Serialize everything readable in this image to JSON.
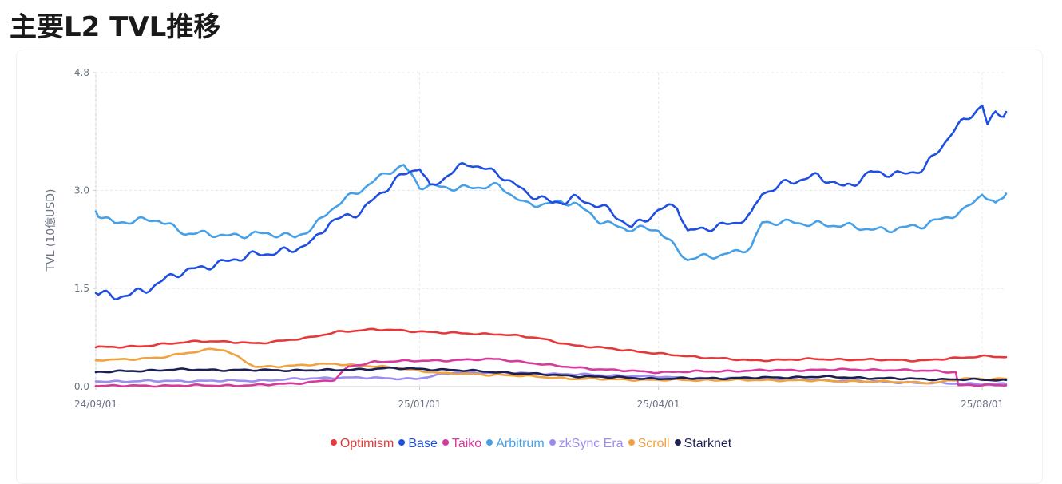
{
  "page": {
    "title": "主要L2 TVL推移"
  },
  "chart_data": {
    "type": "line",
    "title": "主要L2 TVL推移",
    "xlabel": "",
    "ylabel": "TVL (10億USD)",
    "ylim": [
      0,
      4.8
    ],
    "yticks": [
      "0.0",
      "1.5",
      "3.0",
      "4.8"
    ],
    "xlim": [
      "2024-09-01",
      "2025-08-10"
    ],
    "xticks": [
      {
        "date": "2024-09-01",
        "label": "24/09/01"
      },
      {
        "date": "2025-01-01",
        "label": "25/01/01"
      },
      {
        "date": "2025-04-01",
        "label": "25/04/01"
      },
      {
        "date": "2025-08-01",
        "label": "25/08/01"
      }
    ],
    "grid": true,
    "legend_position": "bottom",
    "series": [
      {
        "name": "Optimism",
        "color": "#e5383b",
        "points": [
          [
            "2024-09-01",
            0.6
          ],
          [
            "2024-09-20",
            0.62
          ],
          [
            "2024-10-10",
            0.7
          ],
          [
            "2024-10-31",
            0.66
          ],
          [
            "2024-11-20",
            0.74
          ],
          [
            "2024-12-01",
            0.84
          ],
          [
            "2024-12-15",
            0.87
          ],
          [
            "2024-12-25",
            0.86
          ],
          [
            "2025-01-10",
            0.82
          ],
          [
            "2025-01-31",
            0.8
          ],
          [
            "2025-02-15",
            0.74
          ],
          [
            "2025-03-01",
            0.62
          ],
          [
            "2025-03-15",
            0.58
          ],
          [
            "2025-04-01",
            0.5
          ],
          [
            "2025-04-20",
            0.44
          ],
          [
            "2025-05-05",
            0.4
          ],
          [
            "2025-05-31",
            0.42
          ],
          [
            "2025-06-20",
            0.41
          ],
          [
            "2025-07-10",
            0.4
          ],
          [
            "2025-07-25",
            0.44
          ],
          [
            "2025-08-01",
            0.47
          ],
          [
            "2025-08-10",
            0.45
          ]
        ]
      },
      {
        "name": "Base",
        "color": "#1f4fe0",
        "points": [
          [
            "2024-09-01",
            1.43
          ],
          [
            "2024-09-08",
            1.35
          ],
          [
            "2024-09-20",
            1.5
          ],
          [
            "2024-10-01",
            1.7
          ],
          [
            "2024-10-15",
            1.88
          ],
          [
            "2024-10-31",
            2.0
          ],
          [
            "2024-11-15",
            2.12
          ],
          [
            "2024-11-22",
            2.2
          ],
          [
            "2024-11-28",
            2.5
          ],
          [
            "2024-12-10",
            2.7
          ],
          [
            "2024-12-25",
            3.2
          ],
          [
            "2025-01-01",
            3.38
          ],
          [
            "2025-01-05",
            3.05
          ],
          [
            "2025-01-12",
            3.25
          ],
          [
            "2025-01-20",
            3.4
          ],
          [
            "2025-02-01",
            3.25
          ],
          [
            "2025-02-10",
            2.95
          ],
          [
            "2025-02-20",
            2.8
          ],
          [
            "2025-02-28",
            2.9
          ],
          [
            "2025-03-10",
            2.75
          ],
          [
            "2025-03-15",
            2.62
          ],
          [
            "2025-03-22",
            2.45
          ],
          [
            "2025-04-01",
            2.7
          ],
          [
            "2025-04-08",
            2.75
          ],
          [
            "2025-04-12",
            2.35
          ],
          [
            "2025-04-20",
            2.45
          ],
          [
            "2025-04-30",
            2.5
          ],
          [
            "2025-05-06",
            2.6
          ],
          [
            "2025-05-10",
            2.95
          ],
          [
            "2025-05-20",
            3.15
          ],
          [
            "2025-05-31",
            3.2
          ],
          [
            "2025-06-10",
            3.05
          ],
          [
            "2025-06-20",
            3.28
          ],
          [
            "2025-07-01",
            3.22
          ],
          [
            "2025-07-10",
            3.35
          ],
          [
            "2025-07-20",
            3.85
          ],
          [
            "2025-08-01",
            4.3
          ],
          [
            "2025-08-03",
            4.0
          ],
          [
            "2025-08-06",
            4.2
          ],
          [
            "2025-08-10",
            4.2
          ]
        ]
      },
      {
        "name": "Taiko",
        "color": "#d63a9a",
        "points": [
          [
            "2024-09-01",
            0.01
          ],
          [
            "2024-10-31",
            0.02
          ],
          [
            "2024-11-15",
            0.05
          ],
          [
            "2024-11-30",
            0.1
          ],
          [
            "2024-12-05",
            0.3
          ],
          [
            "2024-12-15",
            0.38
          ],
          [
            "2025-01-10",
            0.4
          ],
          [
            "2025-01-31",
            0.42
          ],
          [
            "2025-02-20",
            0.32
          ],
          [
            "2025-03-15",
            0.25
          ],
          [
            "2025-04-01",
            0.22
          ],
          [
            "2025-05-15",
            0.25
          ],
          [
            "2025-06-15",
            0.26
          ],
          [
            "2025-07-15",
            0.24
          ],
          [
            "2025-07-22",
            0.22
          ],
          [
            "2025-07-23",
            0.02
          ],
          [
            "2025-08-10",
            0.02
          ]
        ]
      },
      {
        "name": "Arbitrum",
        "color": "#46a0e8",
        "points": [
          [
            "2024-09-01",
            2.68
          ],
          [
            "2024-09-08",
            2.5
          ],
          [
            "2024-09-25",
            2.55
          ],
          [
            "2024-10-05",
            2.35
          ],
          [
            "2024-10-20",
            2.3
          ],
          [
            "2024-10-31",
            2.35
          ],
          [
            "2024-11-15",
            2.28
          ],
          [
            "2024-11-22",
            2.45
          ],
          [
            "2024-11-28",
            2.7
          ],
          [
            "2024-12-10",
            3.0
          ],
          [
            "2024-12-20",
            3.3
          ],
          [
            "2024-12-26",
            3.38
          ],
          [
            "2025-01-01",
            3.05
          ],
          [
            "2025-01-15",
            3.05
          ],
          [
            "2025-01-31",
            3.05
          ],
          [
            "2025-02-10",
            2.8
          ],
          [
            "2025-02-28",
            2.8
          ],
          [
            "2025-03-10",
            2.55
          ],
          [
            "2025-03-20",
            2.4
          ],
          [
            "2025-04-01",
            2.4
          ],
          [
            "2025-04-12",
            1.95
          ],
          [
            "2025-04-25",
            2.0
          ],
          [
            "2025-05-06",
            2.15
          ],
          [
            "2025-05-10",
            2.5
          ],
          [
            "2025-05-31",
            2.5
          ],
          [
            "2025-06-20",
            2.4
          ],
          [
            "2025-07-10",
            2.45
          ],
          [
            "2025-07-25",
            2.7
          ],
          [
            "2025-08-01",
            2.95
          ],
          [
            "2025-08-06",
            2.75
          ],
          [
            "2025-08-10",
            2.95
          ]
        ]
      },
      {
        "name": "zkSync Era",
        "color": "#9b8cf0",
        "points": [
          [
            "2024-09-01",
            0.08
          ],
          [
            "2024-10-31",
            0.09
          ],
          [
            "2024-12-01",
            0.14
          ],
          [
            "2024-12-31",
            0.12
          ],
          [
            "2025-01-15",
            0.22
          ],
          [
            "2025-02-15",
            0.2
          ],
          [
            "2025-03-15",
            0.17
          ],
          [
            "2025-04-15",
            0.13
          ],
          [
            "2025-06-01",
            0.1
          ],
          [
            "2025-07-15",
            0.05
          ],
          [
            "2025-08-10",
            0.04
          ]
        ]
      },
      {
        "name": "Scroll",
        "color": "#f0a23f",
        "points": [
          [
            "2024-09-01",
            0.4
          ],
          [
            "2024-09-25",
            0.44
          ],
          [
            "2024-10-15",
            0.58
          ],
          [
            "2024-10-20",
            0.55
          ],
          [
            "2024-10-31",
            0.3
          ],
          [
            "2024-11-15",
            0.32
          ],
          [
            "2024-11-30",
            0.35
          ],
          [
            "2024-12-10",
            0.32
          ],
          [
            "2024-12-25",
            0.28
          ],
          [
            "2025-01-10",
            0.2
          ],
          [
            "2025-01-31",
            0.18
          ],
          [
            "2025-03-01",
            0.12
          ],
          [
            "2025-04-01",
            0.1
          ],
          [
            "2025-05-15",
            0.1
          ],
          [
            "2025-06-15",
            0.08
          ],
          [
            "2025-07-15",
            0.06
          ],
          [
            "2025-07-25",
            0.12
          ],
          [
            "2025-08-10",
            0.12
          ]
        ]
      },
      {
        "name": "Starknet",
        "color": "#1c1f52",
        "points": [
          [
            "2024-09-01",
            0.22
          ],
          [
            "2024-10-01",
            0.26
          ],
          [
            "2024-10-31",
            0.25
          ],
          [
            "2024-11-30",
            0.25
          ],
          [
            "2024-12-20",
            0.28
          ],
          [
            "2025-01-10",
            0.26
          ],
          [
            "2025-01-31",
            0.22
          ],
          [
            "2025-03-01",
            0.16
          ],
          [
            "2025-04-01",
            0.12
          ],
          [
            "2025-05-01",
            0.13
          ],
          [
            "2025-06-01",
            0.15
          ],
          [
            "2025-07-01",
            0.12
          ],
          [
            "2025-08-10",
            0.1
          ]
        ]
      }
    ]
  }
}
